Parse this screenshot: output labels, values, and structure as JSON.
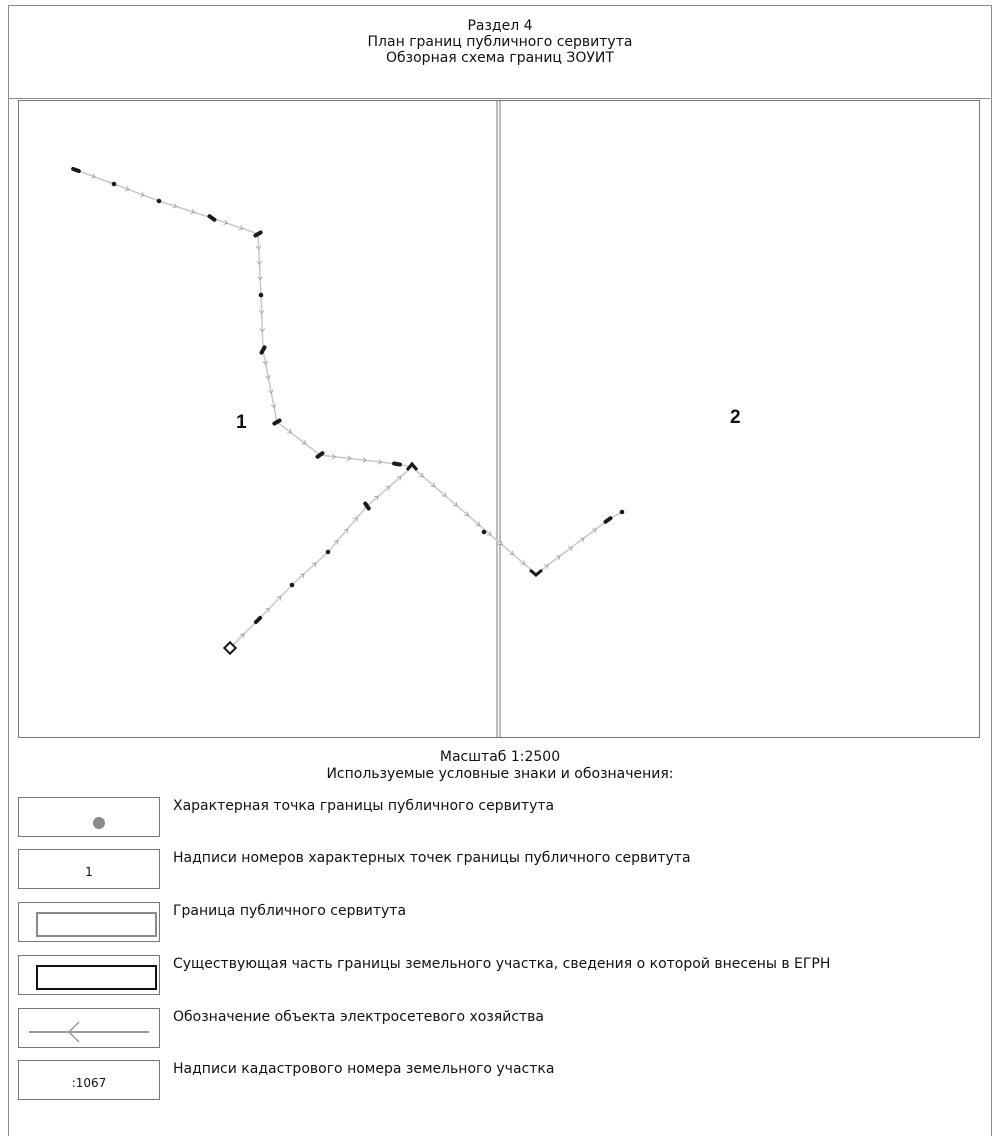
{
  "header": {
    "section": "Раздел 4",
    "title": "План границ публичного сервитута",
    "subtitle": "Обзорная схема границ ЗОУИТ"
  },
  "map": {
    "sheet_numbers": [
      "1",
      "2"
    ],
    "line_color": "#c8c8c8",
    "point_color": "#1a1a1a"
  },
  "scale": "Масштаб 1:2500",
  "legend_title": "Используемые условные знаки и обозначения:",
  "legend": [
    {
      "sample": "dot",
      "sample_text": "",
      "label": "Характерная точка границы публичного сервитута"
    },
    {
      "sample": "text",
      "sample_text": "1",
      "label": "Надписи номеров характерных точек границы публичного сервитута"
    },
    {
      "sample": "grey-rect",
      "sample_text": "",
      "label": "Граница публичного сервитута"
    },
    {
      "sample": "black-rect",
      "sample_text": "",
      "label": "Существующая часть границы земельного участка, сведения о которой внесены в ЕГРН"
    },
    {
      "sample": "arrow-line",
      "sample_text": "",
      "label": "Обозначение объекта электросетевого хозяйства"
    },
    {
      "sample": "text",
      "sample_text": ":1067",
      "label": "Надписи кадастрового номера земельного участка"
    }
  ]
}
